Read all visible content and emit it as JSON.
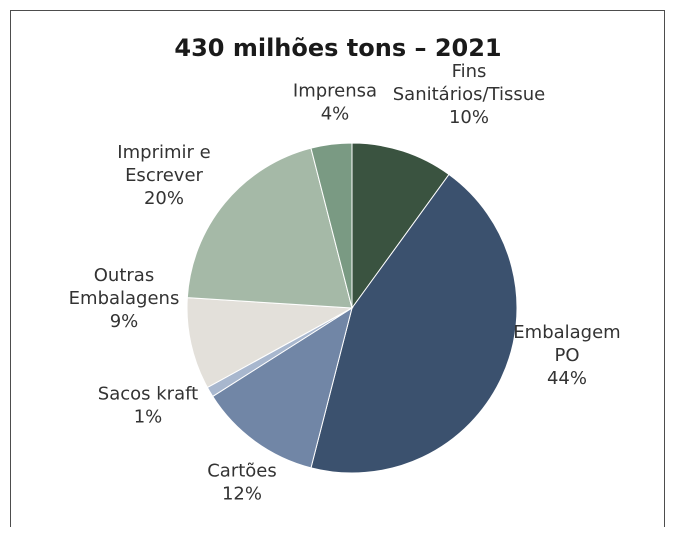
{
  "chart_data": {
    "type": "pie",
    "title": "430 milhões tons – 2021",
    "slices": [
      {
        "label_lines": [
          "Fins",
          "Sanitários/Tissue"
        ],
        "pct_label": "10%",
        "value": 10,
        "color": "#3a5340"
      },
      {
        "label_lines": [
          "Embalagem",
          "PO"
        ],
        "pct_label": "44%",
        "value": 44,
        "color": "#3b516e"
      },
      {
        "label_lines": [
          "Cartões"
        ],
        "pct_label": "12%",
        "value": 12,
        "color": "#7186a6"
      },
      {
        "label_lines": [
          "Sacos kraft"
        ],
        "pct_label": "1%",
        "value": 1,
        "color": "#a8b7ce"
      },
      {
        "label_lines": [
          "Outras",
          "Embalagens"
        ],
        "pct_label": "9%",
        "value": 9,
        "color": "#e3e0da"
      },
      {
        "label_lines": [
          "Imprimir e",
          "Escrever"
        ],
        "pct_label": "20%",
        "value": 20,
        "color": "#a5b9a7"
      },
      {
        "label_lines": [
          "Imprensa"
        ],
        "pct_label": "4%",
        "value": 4,
        "color": "#7a9a83"
      }
    ],
    "legend": "none"
  }
}
